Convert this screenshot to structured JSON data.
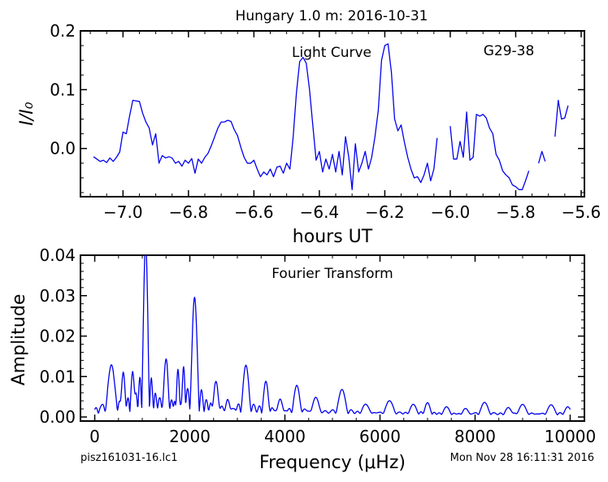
{
  "figure": {
    "title": "Hungary 1.0 m:  2016-10-31",
    "footer_left": "pisz161031-16.lc1",
    "footer_right": "Mon Nov 28 16:11:31 2016"
  },
  "colors": {
    "line": "#0000ee",
    "axes": "#000000"
  },
  "chart_data": [
    {
      "type": "line",
      "annotation": "Light Curve",
      "star_label": "G29-38",
      "xlabel": "hours UT",
      "ylabel": "I/I₀",
      "xlim": [
        -7.13,
        -5.59
      ],
      "ylim": [
        -0.082,
        0.2
      ],
      "xticks": [
        -7.0,
        -6.8,
        -6.6,
        -6.4,
        -6.2,
        -6.0,
        -5.8,
        -5.6
      ],
      "xtick_labels": [
        "−7.0",
        "−6.8",
        "−6.6",
        "−6.4",
        "−6.2",
        "−6.0",
        "−5.8",
        "−5.6"
      ],
      "yticks": [
        0.0,
        0.1,
        0.2
      ],
      "ytick_labels": [
        "0.0",
        "0.1",
        "0.2"
      ],
      "grid": false,
      "segments": [
        {
          "x": [
            -7.09,
            -7.08,
            -7.07,
            -7.06,
            -7.05,
            -7.04,
            -7.03,
            -7.02,
            -7.01,
            -7.0,
            -6.99,
            -6.98,
            -6.97,
            -6.96,
            -6.95,
            -6.94,
            -6.93,
            -6.92,
            -6.91,
            -6.9,
            -6.89,
            -6.88,
            -6.87,
            -6.86,
            -6.85,
            -6.84,
            -6.83,
            -6.82,
            -6.81,
            -6.8,
            -6.79,
            -6.78,
            -6.77,
            -6.76,
            -6.75,
            -6.74,
            -6.73,
            -6.72,
            -6.71,
            -6.7,
            -6.69,
            -6.68,
            -6.67,
            -6.66,
            -6.65,
            -6.64,
            -6.63,
            -6.62,
            -6.61,
            -6.6,
            -6.59,
            -6.58,
            -6.57,
            -6.56,
            -6.55,
            -6.54,
            -6.53,
            -6.52,
            -6.51,
            -6.5,
            -6.49,
            -6.48,
            -6.47,
            -6.46,
            -6.45,
            -6.44,
            -6.43,
            -6.42,
            -6.41,
            -6.4,
            -6.39,
            -6.38,
            -6.37,
            -6.36,
            -6.35,
            -6.34,
            -6.33,
            -6.32,
            -6.31,
            -6.3,
            -6.29,
            -6.28,
            -6.27,
            -6.26,
            -6.25,
            -6.24,
            -6.23,
            -6.22,
            -6.21,
            -6.2,
            -6.19,
            -6.18,
            -6.17,
            -6.16,
            -6.15,
            -6.14,
            -6.13,
            -6.12,
            -6.11,
            -6.1,
            -6.09,
            -6.08,
            -6.07,
            -6.06,
            -6.05,
            -6.04
          ],
          "y": [
            -0.014,
            -0.018,
            -0.022,
            -0.02,
            -0.024,
            -0.016,
            -0.022,
            -0.015,
            -0.006,
            0.028,
            0.025,
            0.055,
            0.082,
            0.081,
            0.08,
            0.06,
            0.045,
            0.035,
            0.006,
            0.025,
            -0.025,
            -0.012,
            -0.016,
            -0.014,
            -0.016,
            -0.025,
            -0.022,
            -0.03,
            -0.02,
            -0.025,
            -0.017,
            -0.042,
            -0.018,
            -0.025,
            -0.015,
            -0.008,
            0.005,
            0.02,
            0.035,
            0.045,
            0.045,
            0.048,
            0.046,
            0.032,
            0.022,
            0.002,
            -0.015,
            -0.025,
            -0.025,
            -0.02,
            -0.035,
            -0.048,
            -0.04,
            -0.045,
            -0.035,
            -0.048,
            -0.032,
            -0.03,
            -0.042,
            -0.025,
            -0.035,
            0.02,
            0.095,
            0.148,
            0.155,
            0.145,
            0.1,
            0.04,
            -0.02,
            -0.005,
            -0.04,
            -0.018,
            -0.035,
            -0.01,
            -0.04,
            -0.005,
            -0.045,
            0.02,
            -0.015,
            -0.07,
            0.008,
            -0.04,
            -0.025,
            -0.005,
            -0.035,
            -0.015,
            0.02,
            0.065,
            0.15,
            0.175,
            0.178,
            0.13,
            0.05,
            0.03,
            0.04,
            0.01,
            -0.015,
            -0.035,
            -0.05,
            -0.048,
            -0.058,
            -0.045,
            -0.025,
            -0.055,
            -0.035,
            0.018
          ]
        },
        {
          "x": [
            -6.0,
            -5.99,
            -5.98,
            -5.97,
            -5.96,
            -5.95,
            -5.94,
            -5.93,
            -5.92,
            -5.91,
            -5.9,
            -5.89,
            -5.88,
            -5.87,
            -5.86,
            -5.85,
            -5.84,
            -5.83,
            -5.82,
            -5.81,
            -5.8,
            -5.79,
            -5.78,
            -5.77,
            -5.76
          ],
          "y": [
            0.038,
            -0.018,
            -0.018,
            0.012,
            -0.015,
            0.062,
            -0.02,
            -0.015,
            0.058,
            0.055,
            0.058,
            0.052,
            0.035,
            0.025,
            -0.01,
            -0.02,
            -0.038,
            -0.045,
            -0.05,
            -0.062,
            -0.065,
            -0.07,
            -0.07,
            -0.055,
            -0.038
          ]
        },
        {
          "x": [
            -5.73,
            -5.72,
            -5.71
          ],
          "y": [
            -0.025,
            -0.005,
            -0.022
          ]
        },
        {
          "x": [
            -5.68,
            -5.67,
            -5.66,
            -5.65,
            -5.64
          ],
          "y": [
            0.02,
            0.082,
            0.05,
            0.052,
            0.073
          ]
        }
      ]
    },
    {
      "type": "line",
      "annotation": "Fourier Transform",
      "xlabel": "Frequency (μHz)",
      "ylabel": "Amplitude",
      "xlim": [
        -300,
        10300
      ],
      "ylim": [
        -0.001,
        0.04
      ],
      "xticks": [
        0,
        2000,
        4000,
        6000,
        8000,
        10000
      ],
      "xtick_labels": [
        "0",
        "2000",
        "4000",
        "6000",
        "8000",
        "10000"
      ],
      "yticks": [
        0.0,
        0.01,
        0.02,
        0.03,
        0.04
      ],
      "ytick_labels": [
        "0.00",
        "0.01",
        "0.02",
        "0.03",
        "0.04"
      ],
      "grid": false,
      "peaks": [
        {
          "f": 350,
          "a": 0.0125,
          "w": 120
        },
        {
          "f": 600,
          "a": 0.0105,
          "w": 60
        },
        {
          "f": 800,
          "a": 0.0105,
          "w": 55
        },
        {
          "f": 1070,
          "a": 0.043,
          "w": 75
        },
        {
          "f": 1500,
          "a": 0.014,
          "w": 70
        },
        {
          "f": 1750,
          "a": 0.011,
          "w": 45
        },
        {
          "f": 1870,
          "a": 0.0115,
          "w": 45
        },
        {
          "f": 2100,
          "a": 0.0293,
          "w": 90
        },
        {
          "f": 2550,
          "a": 0.0082,
          "w": 80
        },
        {
          "f": 2800,
          "a": 0.0038,
          "w": 60
        },
        {
          "f": 3180,
          "a": 0.0125,
          "w": 100
        },
        {
          "f": 3600,
          "a": 0.0085,
          "w": 80
        },
        {
          "f": 3900,
          "a": 0.004,
          "w": 80
        },
        {
          "f": 4250,
          "a": 0.0075,
          "w": 100
        },
        {
          "f": 4650,
          "a": 0.0045,
          "w": 110
        },
        {
          "f": 5200,
          "a": 0.0065,
          "w": 120
        },
        {
          "f": 5700,
          "a": 0.0028,
          "w": 120
        },
        {
          "f": 6200,
          "a": 0.0037,
          "w": 130
        },
        {
          "f": 6700,
          "a": 0.0028,
          "w": 110
        },
        {
          "f": 7000,
          "a": 0.0032,
          "w": 90
        },
        {
          "f": 7400,
          "a": 0.0022,
          "w": 100
        },
        {
          "f": 7800,
          "a": 0.0018,
          "w": 90
        },
        {
          "f": 8200,
          "a": 0.0033,
          "w": 120
        },
        {
          "f": 8700,
          "a": 0.002,
          "w": 100
        },
        {
          "f": 9000,
          "a": 0.0028,
          "w": 120
        },
        {
          "f": 9600,
          "a": 0.0027,
          "w": 120
        },
        {
          "f": 9950,
          "a": 0.0022,
          "w": 100
        }
      ]
    }
  ]
}
